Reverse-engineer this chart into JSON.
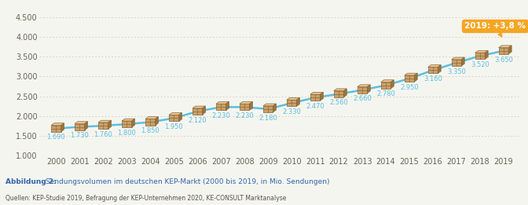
{
  "years": [
    2000,
    2001,
    2002,
    2003,
    2004,
    2005,
    2006,
    2007,
    2008,
    2009,
    2010,
    2011,
    2012,
    2013,
    2014,
    2015,
    2016,
    2017,
    2018,
    2019
  ],
  "values": [
    1690,
    1730,
    1760,
    1800,
    1850,
    1950,
    2120,
    2230,
    2230,
    2180,
    2330,
    2470,
    2560,
    2660,
    2780,
    2950,
    3160,
    3350,
    3520,
    3650
  ],
  "ylim_min": 1000,
  "ylim_max": 4700,
  "yticks": [
    1000,
    1500,
    2000,
    2500,
    3000,
    3500,
    4000,
    4500
  ],
  "ytick_labels": [
    "1.000",
    "1.500",
    "2.000",
    "2.500",
    "3.000",
    "3.500",
    "4.000",
    "4.500"
  ],
  "line_color": "#5bbfdf",
  "line_width": 1.8,
  "box_front_color": "#c9a06a",
  "box_top_color": "#e8c896",
  "box_right_color": "#9a7440",
  "box_edge_color": "#8a6430",
  "annotation_bg_color": "#f5a623",
  "annotation_text": "2019: +3,8 %",
  "annotation_text_color": "#ffffff",
  "bg_color": "#f5f5f0",
  "grid_color": "#ccccbb",
  "text_color": "#666655",
  "label_color": "#5bbfdf",
  "value_label_size": 6.0,
  "axis_label_size": 7.0,
  "title_bold": "Abbildung 2:",
  "title_normal": " Sendungsvolumen im deutschen KEP-Markt (2000 bis 2019, in Mio. Sendungen)",
  "subtitle": "Quellen: KEP-Studie 2019, Befragung der KEP-Unternehmen 2020, KE-CONSULT Marktanalyse",
  "title_color": "#3366aa",
  "subtitle_color": "#555544"
}
